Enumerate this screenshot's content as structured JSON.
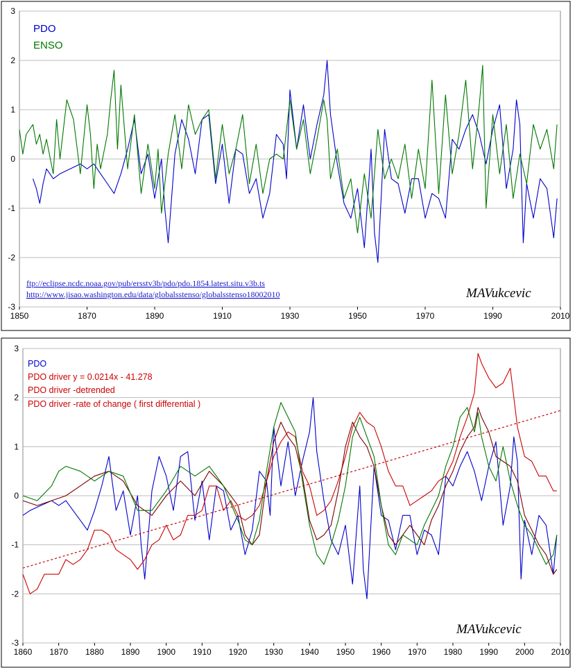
{
  "chart_data": [
    {
      "type": "line",
      "title": "",
      "xlabel": "",
      "ylabel": "",
      "xlim": [
        1850,
        2010
      ],
      "ylim": [
        -3,
        3
      ],
      "x_ticks": [
        "1850",
        "1870",
        "1890",
        "1910",
        "1930",
        "1950",
        "1970",
        "1990",
        "2010"
      ],
      "y_ticks": [
        "3",
        "2",
        "1",
        "0",
        "-1",
        "-2",
        "-3"
      ],
      "grid": true,
      "legend_position": "top-left",
      "colors": {
        "PDO": "#0000cc",
        "ENSO": "#007700"
      },
      "series": [
        {
          "name": "PDO",
          "x": [
            1854,
            1855,
            1856,
            1857,
            1858,
            1860,
            1862,
            1865,
            1868,
            1870,
            1872,
            1874,
            1876,
            1878,
            1880,
            1882,
            1884,
            1886,
            1888,
            1890,
            1892,
            1893,
            1894,
            1896,
            1898,
            1900,
            1902,
            1904,
            1906,
            1908,
            1910,
            1912,
            1914,
            1916,
            1918,
            1920,
            1922,
            1924,
            1926,
            1928,
            1929,
            1930,
            1932,
            1934,
            1936,
            1938,
            1940,
            1941,
            1942,
            1944,
            1946,
            1948,
            1950,
            1952,
            1954,
            1955,
            1956,
            1958,
            1960,
            1962,
            1964,
            1966,
            1968,
            1970,
            1972,
            1974,
            1976,
            1978,
            1980,
            1982,
            1984,
            1986,
            1988,
            1990,
            1992,
            1994,
            1996,
            1997,
            1998,
            1999,
            2000,
            2002,
            2004,
            2006,
            2008,
            2009
          ],
          "values": [
            -0.4,
            -0.6,
            -0.9,
            -0.5,
            -0.2,
            -0.4,
            -0.3,
            -0.2,
            -0.1,
            -0.2,
            -0.1,
            -0.3,
            -0.5,
            -0.7,
            -0.3,
            0.2,
            0.8,
            -0.3,
            0.1,
            -0.8,
            0.0,
            -1.0,
            -1.7,
            0.1,
            0.8,
            0.4,
            -0.3,
            0.8,
            0.9,
            -0.5,
            0.3,
            -0.9,
            0.2,
            0.1,
            -0.7,
            -0.4,
            -1.2,
            -0.7,
            0.5,
            0.3,
            -0.4,
            1.4,
            0.2,
            1.1,
            0.0,
            0.7,
            1.3,
            2.0,
            0.9,
            -0.1,
            -0.9,
            -1.2,
            -0.6,
            -1.8,
            0.2,
            -1.5,
            -2.1,
            0.6,
            -0.4,
            -0.5,
            -1.1,
            -0.4,
            -0.4,
            -1.2,
            -0.7,
            -0.8,
            -1.2,
            0.4,
            0.2,
            0.6,
            0.9,
            0.5,
            -0.1,
            0.6,
            1.1,
            -0.6,
            0.2,
            1.2,
            0.7,
            -1.7,
            -0.5,
            -1.2,
            -0.4,
            -0.6,
            -1.6,
            -0.8
          ]
        },
        {
          "name": "ENSO",
          "x": [
            1850,
            1851,
            1852,
            1854,
            1855,
            1856,
            1857,
            1858,
            1860,
            1861,
            1862,
            1864,
            1866,
            1868,
            1870,
            1871,
            1872,
            1873,
            1874,
            1876,
            1877,
            1878,
            1879,
            1880,
            1882,
            1884,
            1886,
            1888,
            1890,
            1891,
            1892,
            1894,
            1896,
            1898,
            1900,
            1902,
            1904,
            1906,
            1908,
            1910,
            1912,
            1914,
            1916,
            1918,
            1920,
            1922,
            1924,
            1926,
            1928,
            1930,
            1932,
            1934,
            1936,
            1938,
            1940,
            1941,
            1942,
            1944,
            1946,
            1948,
            1950,
            1952,
            1954,
            1956,
            1958,
            1960,
            1962,
            1964,
            1966,
            1968,
            1970,
            1972,
            1974,
            1976,
            1978,
            1980,
            1982,
            1984,
            1986,
            1987,
            1988,
            1990,
            1992,
            1994,
            1996,
            1998,
            2000,
            2002,
            2004,
            2006,
            2008,
            2009
          ],
          "values": [
            0.6,
            0.1,
            0.5,
            0.7,
            0.3,
            0.5,
            0.1,
            0.4,
            -0.3,
            0.8,
            0.0,
            1.2,
            0.8,
            -0.3,
            1.1,
            0.5,
            -0.6,
            0.3,
            -0.2,
            0.5,
            1.2,
            1.8,
            0.2,
            1.5,
            -0.2,
            0.9,
            -0.7,
            0.3,
            -0.6,
            0.2,
            -1.1,
            0.1,
            0.9,
            -0.2,
            1.1,
            0.5,
            0.8,
            1.0,
            -0.4,
            0.7,
            -0.3,
            0.2,
            0.9,
            -0.5,
            0.3,
            -0.7,
            0.0,
            0.1,
            0.0,
            1.2,
            0.2,
            0.8,
            -0.3,
            0.4,
            1.2,
            0.8,
            -0.4,
            0.2,
            -0.8,
            -0.4,
            -1.5,
            -0.3,
            -1.2,
            0.6,
            -0.4,
            0.0,
            -0.4,
            0.3,
            -0.8,
            0.2,
            -0.6,
            1.6,
            -0.7,
            1.3,
            -0.3,
            0.5,
            1.6,
            -0.2,
            1.1,
            1.9,
            -1.0,
            0.9,
            -0.3,
            0.7,
            -0.8,
            0.1,
            -0.5,
            0.7,
            0.2,
            0.6,
            -0.2,
            0.7
          ]
        }
      ],
      "links": [
        "ftp://eclipse.ncdc.noaa.gov/pub/ersstv3b/pdo/pdo.1854.latest.situ.v3b.ts",
        "http://www.jisao.washington.edu/data/globalsstenso/globalsstenso18002010"
      ],
      "signature": "MAVukcevic"
    },
    {
      "type": "line",
      "title": "",
      "xlabel": "",
      "ylabel": "",
      "xlim": [
        1860,
        2010
      ],
      "ylim": [
        -3,
        3
      ],
      "x_ticks": [
        "1860",
        "1870",
        "1880",
        "1890",
        "1900",
        "1910",
        "1920",
        "1930",
        "1940",
        "1950",
        "1960",
        "1970",
        "1980",
        "1990",
        "2000",
        "2010"
      ],
      "y_ticks": [
        "3",
        "2",
        "1",
        "0",
        "-1",
        "-2",
        "-3"
      ],
      "grid": true,
      "legend_position": "top-left",
      "legend": [
        {
          "name": "PDO",
          "color": "#0000cc"
        },
        {
          "name": "PDO driver   y = 0.0214x - 41.278",
          "color": "#cc0000"
        },
        {
          "name": "PDO driver   -detrended",
          "color": "#cc0000"
        },
        {
          "name": "PDO driver   -rate of change ( first differential )",
          "color": "#cc0000"
        }
      ],
      "trendline": {
        "slope": 0.0214,
        "intercept": -41.278,
        "color": "#cc0000",
        "style": "dotted"
      },
      "series": [
        {
          "name": "PDO",
          "color": "#0000cc",
          "x": [
            1860,
            1862,
            1865,
            1868,
            1870,
            1872,
            1874,
            1876,
            1878,
            1880,
            1882,
            1884,
            1886,
            1888,
            1890,
            1892,
            1893,
            1894,
            1896,
            1898,
            1900,
            1902,
            1904,
            1906,
            1908,
            1910,
            1912,
            1914,
            1916,
            1918,
            1920,
            1922,
            1924,
            1926,
            1928,
            1929,
            1930,
            1932,
            1934,
            1936,
            1938,
            1940,
            1941,
            1942,
            1944,
            1946,
            1948,
            1950,
            1952,
            1954,
            1955,
            1956,
            1958,
            1960,
            1962,
            1964,
            1966,
            1968,
            1970,
            1972,
            1974,
            1976,
            1978,
            1980,
            1982,
            1984,
            1986,
            1988,
            1990,
            1992,
            1994,
            1996,
            1997,
            1998,
            1999,
            2000,
            2002,
            2004,
            2006,
            2008,
            2009
          ],
          "values": [
            -0.4,
            -0.3,
            -0.2,
            -0.1,
            -0.2,
            -0.1,
            -0.3,
            -0.5,
            -0.7,
            -0.3,
            0.2,
            0.8,
            -0.3,
            0.1,
            -0.8,
            0.0,
            -1.0,
            -1.7,
            0.1,
            0.8,
            0.4,
            -0.3,
            0.8,
            0.9,
            -0.5,
            0.3,
            -0.9,
            0.2,
            0.1,
            -0.7,
            -0.4,
            -1.2,
            -0.7,
            0.5,
            0.3,
            -0.4,
            1.4,
            0.2,
            1.1,
            0.0,
            0.7,
            1.3,
            2.0,
            0.9,
            -0.1,
            -0.9,
            -1.2,
            -0.6,
            -1.8,
            0.2,
            -1.5,
            -2.1,
            0.6,
            -0.4,
            -0.5,
            -1.1,
            -0.4,
            -0.4,
            -1.2,
            -0.7,
            -0.8,
            -1.2,
            0.4,
            0.2,
            0.6,
            0.9,
            0.5,
            -0.1,
            0.6,
            1.1,
            -0.6,
            0.2,
            1.2,
            0.7,
            -1.7,
            -0.5,
            -1.2,
            -0.4,
            -0.6,
            -1.6,
            -0.8
          ]
        },
        {
          "name": "PDO driver",
          "color": "#cc0000",
          "x": [
            1860,
            1862,
            1864,
            1866,
            1868,
            1870,
            1872,
            1874,
            1876,
            1878,
            1880,
            1882,
            1884,
            1886,
            1888,
            1890,
            1892,
            1894,
            1896,
            1898,
            1900,
            1902,
            1904,
            1906,
            1908,
            1910,
            1912,
            1914,
            1916,
            1918,
            1920,
            1922,
            1924,
            1926,
            1928,
            1930,
            1932,
            1934,
            1936,
            1938,
            1940,
            1942,
            1944,
            1946,
            1948,
            1950,
            1952,
            1954,
            1956,
            1958,
            1960,
            1962,
            1964,
            1966,
            1968,
            1970,
            1972,
            1974,
            1976,
            1978,
            1980,
            1982,
            1984,
            1986,
            1987,
            1988,
            1990,
            1992,
            1994,
            1996,
            1998,
            2000,
            2002,
            2004,
            2006,
            2008,
            2009
          ],
          "values": [
            -1.6,
            -2.0,
            -1.9,
            -1.6,
            -1.6,
            -1.6,
            -1.3,
            -1.4,
            -1.3,
            -1.1,
            -0.7,
            -0.7,
            -0.8,
            -1.1,
            -1.2,
            -1.3,
            -1.5,
            -1.3,
            -1.0,
            -0.9,
            -0.6,
            -0.9,
            -0.8,
            -0.4,
            -0.4,
            -0.3,
            0.2,
            0.2,
            -0.3,
            -0.1,
            -0.4,
            -0.5,
            -0.4,
            -0.2,
            0.3,
            0.8,
            1.1,
            1.3,
            1.2,
            0.5,
            0.2,
            -0.4,
            -0.3,
            -0.1,
            0.3,
            0.8,
            1.4,
            1.7,
            1.5,
            1.4,
            1.0,
            0.5,
            0.2,
            0.2,
            -0.2,
            -0.1,
            0.0,
            0.1,
            0.3,
            0.4,
            0.7,
            1.2,
            1.6,
            2.1,
            2.9,
            2.7,
            2.4,
            2.2,
            2.3,
            2.6,
            1.4,
            0.8,
            0.7,
            0.4,
            0.4,
            0.1,
            0.1
          ]
        },
        {
          "name": "PDO driver -detrended",
          "color": "#7a0000",
          "x": [
            1860,
            1864,
            1868,
            1872,
            1876,
            1880,
            1884,
            1888,
            1892,
            1896,
            1900,
            1904,
            1908,
            1912,
            1916,
            1920,
            1922,
            1924,
            1926,
            1928,
            1930,
            1932,
            1934,
            1936,
            1938,
            1940,
            1942,
            1944,
            1946,
            1948,
            1950,
            1952,
            1954,
            1956,
            1958,
            1960,
            1962,
            1964,
            1966,
            1968,
            1970,
            1972,
            1974,
            1976,
            1978,
            1980,
            1982,
            1984,
            1986,
            1987,
            1988,
            1990,
            1992,
            1994,
            1996,
            1998,
            2000,
            2002,
            2004,
            2006,
            2008,
            2009
          ],
          "values": [
            -0.1,
            -0.2,
            -0.1,
            0.0,
            0.2,
            0.4,
            0.5,
            0.3,
            -0.2,
            -0.4,
            0.0,
            0.3,
            0.0,
            0.5,
            0.2,
            -0.2,
            -0.8,
            -1.0,
            -0.8,
            0.3,
            1.1,
            1.5,
            1.2,
            1.0,
            0.4,
            -0.5,
            -0.9,
            -0.8,
            -0.6,
            0.1,
            1.0,
            1.5,
            1.2,
            1.0,
            0.6,
            -0.2,
            -0.8,
            -1.0,
            -0.8,
            -0.6,
            -0.8,
            -1.0,
            -0.5,
            -0.2,
            0.2,
            0.5,
            0.9,
            1.2,
            1.4,
            1.8,
            1.6,
            1.3,
            0.8,
            0.7,
            0.6,
            0.3,
            -0.4,
            -0.7,
            -1.0,
            -1.2,
            -1.6,
            -1.5
          ]
        },
        {
          "name": "PDO driver -rate of change ( first differential )",
          "color": "#007700",
          "x": [
            1860,
            1864,
            1868,
            1870,
            1872,
            1876,
            1880,
            1884,
            1888,
            1892,
            1896,
            1900,
            1904,
            1908,
            1912,
            1916,
            1920,
            1922,
            1924,
            1926,
            1928,
            1930,
            1932,
            1934,
            1936,
            1938,
            1940,
            1942,
            1944,
            1946,
            1948,
            1950,
            1952,
            1954,
            1956,
            1958,
            1960,
            1962,
            1964,
            1966,
            1968,
            1970,
            1972,
            1974,
            1976,
            1978,
            1980,
            1982,
            1984,
            1986,
            1987,
            1988,
            1990,
            1992,
            1994,
            1996,
            1998,
            2000,
            2002,
            2004,
            2006,
            2008,
            2009
          ],
          "values": [
            0.0,
            -0.1,
            0.2,
            0.5,
            0.6,
            0.5,
            0.3,
            0.5,
            0.4,
            -0.3,
            -0.3,
            0.1,
            0.6,
            0.4,
            0.6,
            0.2,
            -0.5,
            -0.9,
            -1.0,
            -0.5,
            0.5,
            1.4,
            1.9,
            1.6,
            1.3,
            0.3,
            -0.6,
            -1.2,
            -1.4,
            -1.0,
            -0.5,
            0.2,
            1.2,
            1.6,
            1.2,
            0.8,
            -0.2,
            -1.0,
            -1.2,
            -0.8,
            -0.9,
            -1.0,
            -0.6,
            -0.3,
            0.0,
            0.6,
            1.0,
            1.6,
            1.8,
            1.3,
            1.7,
            1.2,
            0.6,
            0.3,
            1.0,
            0.3,
            -0.2,
            -0.6,
            -0.8,
            -1.1,
            -1.4,
            -1.2,
            -0.8
          ]
        }
      ],
      "signature": "MAVukcevic"
    }
  ]
}
